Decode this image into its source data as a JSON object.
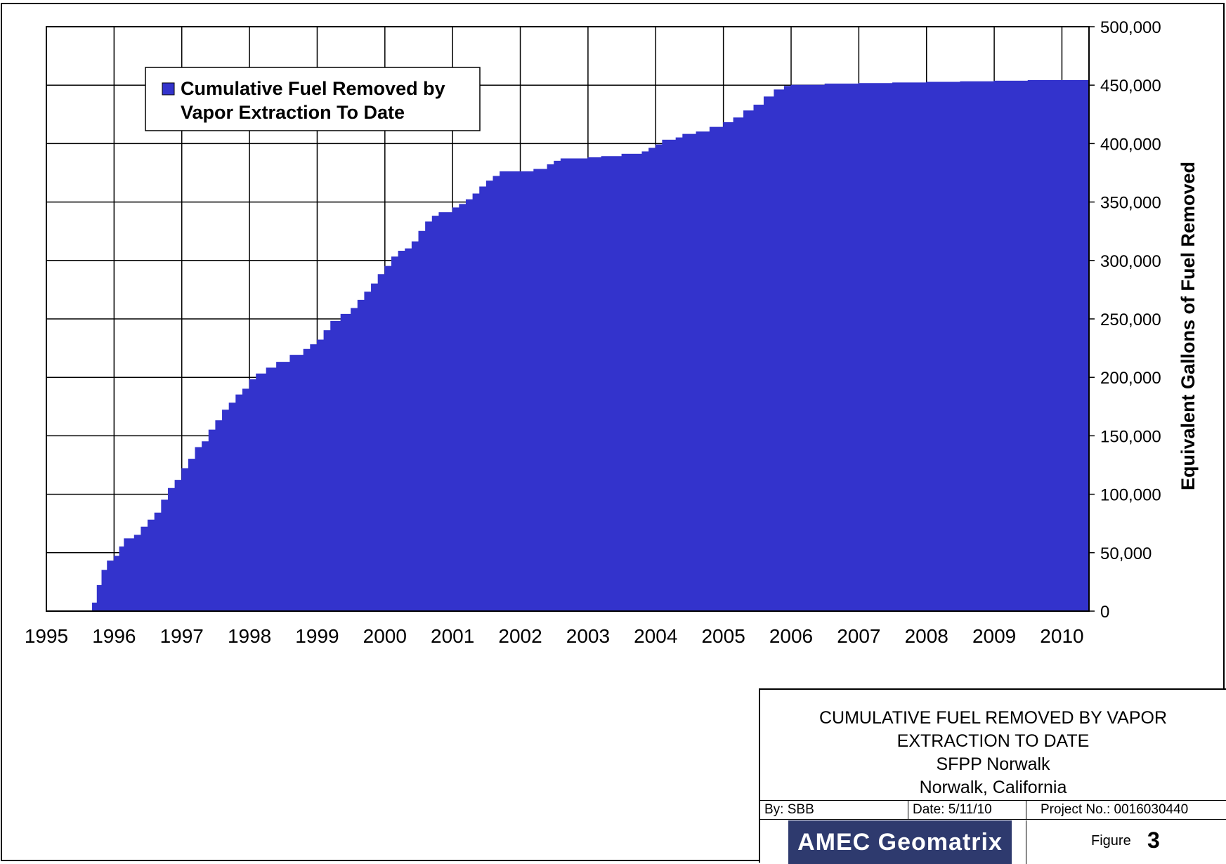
{
  "chart_data": {
    "type": "area",
    "title": "",
    "xlabel": "",
    "ylabel": "Equivalent Gallons of Fuel Removed",
    "xlim": [
      1995,
      2010.4
    ],
    "ylim": [
      0,
      500000
    ],
    "x_ticks": [
      "1995",
      "1996",
      "1997",
      "1998",
      "1999",
      "2000",
      "2001",
      "2002",
      "2003",
      "2004",
      "2005",
      "2006",
      "2007",
      "2008",
      "2009",
      "2010"
    ],
    "y_ticks": [
      "0",
      "50,000",
      "100,000",
      "150,000",
      "200,000",
      "250,000",
      "300,000",
      "350,000",
      "400,000",
      "450,000",
      "500,000"
    ],
    "grid": true,
    "legend_position": "top-left",
    "series": [
      {
        "name": "Cumulative Fuel Removed by Vapor Extraction To Date",
        "color": "#3333cc",
        "points": [
          [
            1995.67,
            0
          ],
          [
            1995.68,
            7000
          ],
          [
            1995.75,
            22000
          ],
          [
            1995.82,
            35000
          ],
          [
            1995.9,
            43000
          ],
          [
            1996.0,
            47000
          ],
          [
            1996.08,
            55000
          ],
          [
            1996.15,
            62000
          ],
          [
            1996.3,
            65000
          ],
          [
            1996.4,
            72000
          ],
          [
            1996.5,
            78000
          ],
          [
            1996.6,
            84000
          ],
          [
            1996.7,
            95000
          ],
          [
            1996.8,
            105000
          ],
          [
            1996.9,
            112000
          ],
          [
            1997.0,
            122000
          ],
          [
            1997.1,
            130000
          ],
          [
            1997.2,
            140000
          ],
          [
            1997.3,
            145000
          ],
          [
            1997.4,
            155000
          ],
          [
            1997.5,
            163000
          ],
          [
            1997.6,
            172000
          ],
          [
            1997.7,
            178000
          ],
          [
            1997.8,
            185000
          ],
          [
            1997.9,
            190000
          ],
          [
            1998.0,
            198000
          ],
          [
            1998.1,
            203000
          ],
          [
            1998.25,
            208000
          ],
          [
            1998.4,
            213000
          ],
          [
            1998.6,
            219000
          ],
          [
            1998.8,
            224000
          ],
          [
            1998.9,
            228000
          ],
          [
            1999.0,
            232000
          ],
          [
            1999.1,
            240000
          ],
          [
            1999.2,
            248000
          ],
          [
            1999.35,
            254000
          ],
          [
            1999.5,
            259000
          ],
          [
            1999.6,
            266000
          ],
          [
            1999.7,
            273000
          ],
          [
            1999.8,
            280000
          ],
          [
            1999.9,
            288000
          ],
          [
            2000.0,
            295000
          ],
          [
            2000.1,
            303000
          ],
          [
            2000.2,
            308000
          ],
          [
            2000.3,
            310000
          ],
          [
            2000.4,
            316000
          ],
          [
            2000.5,
            325000
          ],
          [
            2000.6,
            333000
          ],
          [
            2000.7,
            338000
          ],
          [
            2000.8,
            341000
          ],
          [
            2001.0,
            345000
          ],
          [
            2001.1,
            348000
          ],
          [
            2001.2,
            352000
          ],
          [
            2001.3,
            357000
          ],
          [
            2001.4,
            363000
          ],
          [
            2001.5,
            368000
          ],
          [
            2001.6,
            372000
          ],
          [
            2001.7,
            376000
          ],
          [
            2002.0,
            376000
          ],
          [
            2002.2,
            378000
          ],
          [
            2002.4,
            382000
          ],
          [
            2002.5,
            385000
          ],
          [
            2002.6,
            387000
          ],
          [
            2003.0,
            388000
          ],
          [
            2003.2,
            389000
          ],
          [
            2003.5,
            391000
          ],
          [
            2003.8,
            393000
          ],
          [
            2003.9,
            396000
          ],
          [
            2004.0,
            399000
          ],
          [
            2004.1,
            403000
          ],
          [
            2004.3,
            405000
          ],
          [
            2004.4,
            408000
          ],
          [
            2004.6,
            410000
          ],
          [
            2004.8,
            414000
          ],
          [
            2005.0,
            418000
          ],
          [
            2005.15,
            422000
          ],
          [
            2005.3,
            428000
          ],
          [
            2005.45,
            433000
          ],
          [
            2005.6,
            440000
          ],
          [
            2005.75,
            446000
          ],
          [
            2005.9,
            449000
          ],
          [
            2006.0,
            450000
          ],
          [
            2006.5,
            451000
          ],
          [
            2007.0,
            451500
          ],
          [
            2007.5,
            452000
          ],
          [
            2008.0,
            452500
          ],
          [
            2008.5,
            453000
          ],
          [
            2009.0,
            453500
          ],
          [
            2009.5,
            454000
          ],
          [
            2010.4,
            454000
          ]
        ]
      }
    ]
  },
  "title_block": {
    "line1": "CUMULATIVE FUEL REMOVED BY VAPOR",
    "line2": "EXTRACTION TO DATE",
    "line3": "SFPP Norwalk",
    "line4": "Norwalk, California",
    "by": "By: SBB",
    "date": "Date: 5/11/10",
    "project": "Project No.: 0016030440",
    "company": "AMEC Geomatrix",
    "figure_label": "Figure",
    "figure_number": "3"
  }
}
